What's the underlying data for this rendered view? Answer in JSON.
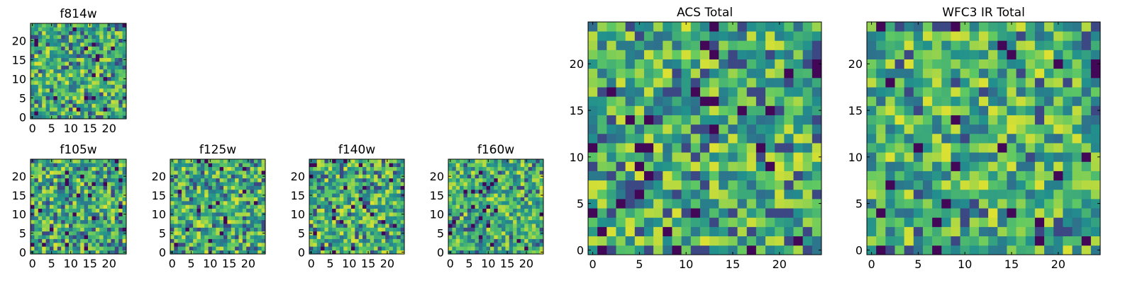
{
  "chart_data": [
    {
      "id": "f814w",
      "type": "heatmap",
      "title": "f814w",
      "grid_size": 25,
      "xticks": [
        "0",
        "5",
        "10",
        "15",
        "20"
      ],
      "yticks": [
        "0",
        "5",
        "10",
        "15",
        "20"
      ],
      "colormap": "viridis",
      "seed": 11
    },
    {
      "id": "f105w",
      "type": "heatmap",
      "title": "f105w",
      "grid_size": 25,
      "xticks": [
        "0",
        "5",
        "10",
        "15",
        "20"
      ],
      "yticks": [
        "0",
        "5",
        "10",
        "15",
        "20"
      ],
      "colormap": "viridis",
      "seed": 23
    },
    {
      "id": "f125w",
      "type": "heatmap",
      "title": "f125w",
      "grid_size": 25,
      "xticks": [
        "0",
        "5",
        "10",
        "15",
        "20"
      ],
      "yticks": [
        "0",
        "5",
        "10",
        "15",
        "20"
      ],
      "colormap": "viridis",
      "seed": 37
    },
    {
      "id": "f140w",
      "type": "heatmap",
      "title": "f140w",
      "grid_size": 25,
      "xticks": [
        "0",
        "5",
        "10",
        "15",
        "20"
      ],
      "yticks": [
        "0",
        "5",
        "10",
        "15",
        "20"
      ],
      "colormap": "viridis",
      "seed": 41
    },
    {
      "id": "f160w",
      "type": "heatmap",
      "title": "f160w",
      "grid_size": 25,
      "xticks": [
        "0",
        "5",
        "10",
        "15",
        "20"
      ],
      "yticks": [
        "0",
        "5",
        "10",
        "15",
        "20"
      ],
      "colormap": "viridis",
      "seed": 53
    },
    {
      "id": "acs-total",
      "type": "heatmap",
      "title": "ACS Total",
      "grid_size": 25,
      "xticks": [
        "0",
        "5",
        "10",
        "15",
        "20"
      ],
      "yticks": [
        "0",
        "5",
        "10",
        "15",
        "20"
      ],
      "colormap": "viridis",
      "seed": 67
    },
    {
      "id": "wfc3-ir-total",
      "type": "heatmap",
      "title": "WFC3 IR Total",
      "grid_size": 25,
      "xticks": [
        "0",
        "5",
        "10",
        "15",
        "20"
      ],
      "yticks": [
        "0",
        "5",
        "10",
        "15",
        "20"
      ],
      "colormap": "viridis",
      "seed": 79
    }
  ],
  "colors": {
    "viridis_stops": [
      "#440154",
      "#3b528b",
      "#21908d",
      "#5dc863",
      "#fde725"
    ],
    "axes_frame": "#000000",
    "background": "#ffffff"
  }
}
